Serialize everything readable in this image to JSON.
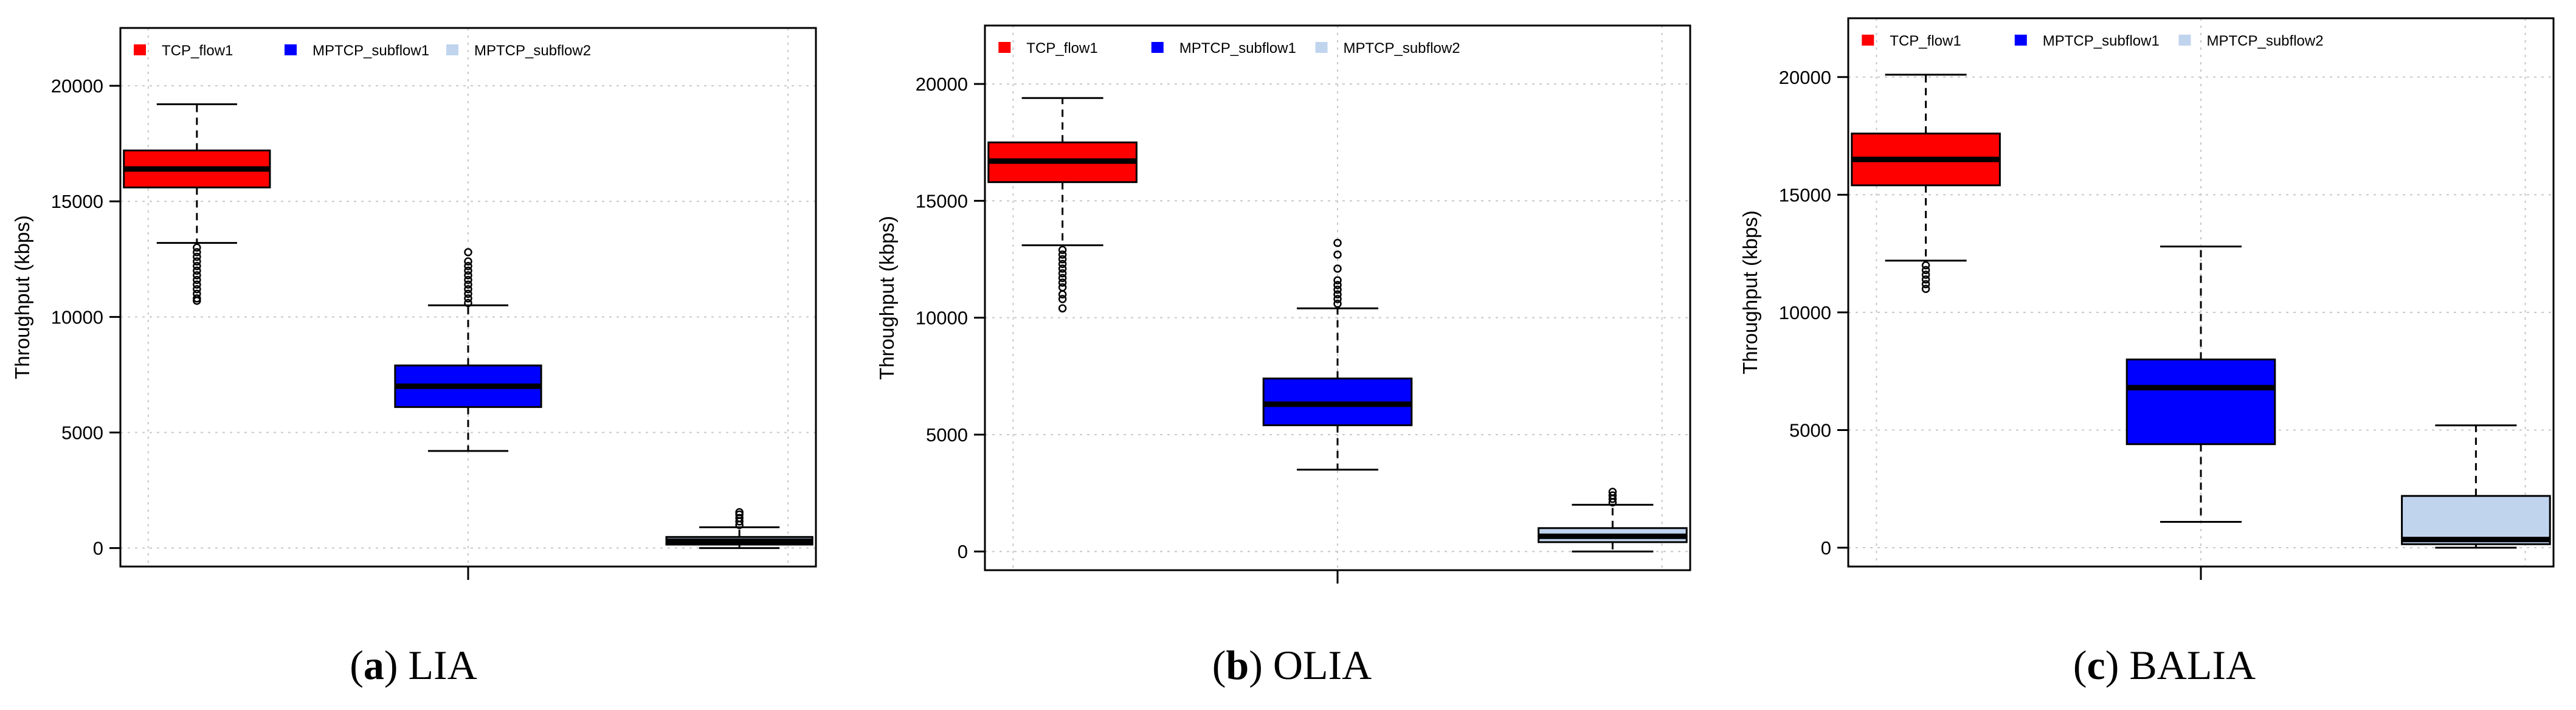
{
  "legend": [
    {
      "label": "TCP_flow1",
      "color": "#ff0000"
    },
    {
      "label": "MPTCP_subflow1",
      "color": "#0000ff"
    },
    {
      "label": "MPTCP_subflow2",
      "color": "#c0d4ee"
    }
  ],
  "chart_data": [
    {
      "type": "boxplot",
      "caption_letter": "a",
      "caption_text": "LIA",
      "ylabel": "Throughput (kbps)",
      "ylim": [
        -800,
        22500
      ],
      "yticks": [
        0,
        5000,
        10000,
        15000,
        20000
      ],
      "ytick_labels": [
        "0",
        "5000",
        "10000",
        "15000",
        "20000"
      ],
      "series": [
        {
          "name": "TCP_flow1",
          "whisker_low": 13200,
          "q1": 15600,
          "median": 16400,
          "q3": 17200,
          "whisker_high": 19200,
          "outliers": [
            13000,
            12800,
            12600,
            12400,
            12200,
            12000,
            11800,
            11600,
            11400,
            11200,
            11000,
            10800,
            10700
          ]
        },
        {
          "name": "MPTCP_subflow1",
          "whisker_low": 4200,
          "q1": 6100,
          "median": 7000,
          "q3": 7900,
          "whisker_high": 10500,
          "outliers": [
            10600,
            10800,
            11000,
            11200,
            11400,
            11600,
            11800,
            12000,
            12200,
            12400,
            12800
          ]
        },
        {
          "name": "MPTCP_subflow2",
          "whisker_low": 0,
          "q1": 150,
          "median": 300,
          "q3": 480,
          "whisker_high": 900,
          "outliers": [
            1000,
            1150,
            1300,
            1450,
            1550
          ]
        }
      ]
    },
    {
      "type": "boxplot",
      "caption_letter": "b",
      "caption_text": "OLIA",
      "ylabel": "Throughput (kbps)",
      "ylim": [
        -800,
        22500
      ],
      "yticks": [
        0,
        5000,
        10000,
        15000,
        20000
      ],
      "ytick_labels": [
        "0",
        "5000",
        "10000",
        "15000",
        "20000"
      ],
      "series": [
        {
          "name": "TCP_flow1",
          "whisker_low": 13100,
          "q1": 15800,
          "median": 16700,
          "q3": 17500,
          "whisker_high": 19400,
          "outliers": [
            12900,
            12700,
            12500,
            12300,
            12100,
            11900,
            11700,
            11500,
            11300,
            11000,
            10800,
            10400
          ]
        },
        {
          "name": "MPTCP_subflow1",
          "whisker_low": 3500,
          "q1": 5400,
          "median": 6300,
          "q3": 7400,
          "whisker_high": 10400,
          "outliers": [
            10600,
            10800,
            11000,
            11200,
            11400,
            11600,
            12100,
            12700,
            13200
          ]
        },
        {
          "name": "MPTCP_subflow2",
          "whisker_low": 0,
          "q1": 400,
          "median": 650,
          "q3": 1000,
          "whisker_high": 2000,
          "outliers": [
            2100,
            2250,
            2400,
            2550
          ]
        }
      ]
    },
    {
      "type": "boxplot",
      "caption_letter": "c",
      "caption_text": "BALIA",
      "ylabel": "Throughput (kbps)",
      "ylim": [
        -800,
        22500
      ],
      "yticks": [
        0,
        5000,
        10000,
        15000,
        20000
      ],
      "ytick_labels": [
        "0",
        "5000",
        "10000",
        "15000",
        "20000"
      ],
      "series": [
        {
          "name": "TCP_flow1",
          "whisker_low": 12200,
          "q1": 15400,
          "median": 16500,
          "q3": 17600,
          "whisker_high": 20100,
          "outliers": [
            12000,
            11800,
            11600,
            11400,
            11200,
            11000
          ]
        },
        {
          "name": "MPTCP_subflow1",
          "whisker_low": 1100,
          "q1": 4400,
          "median": 6800,
          "q3": 8000,
          "whisker_high": 12800,
          "outliers": []
        },
        {
          "name": "MPTCP_subflow2",
          "whisker_low": 0,
          "q1": 150,
          "median": 350,
          "q3": 2200,
          "whisker_high": 5200,
          "outliers": []
        }
      ]
    }
  ]
}
